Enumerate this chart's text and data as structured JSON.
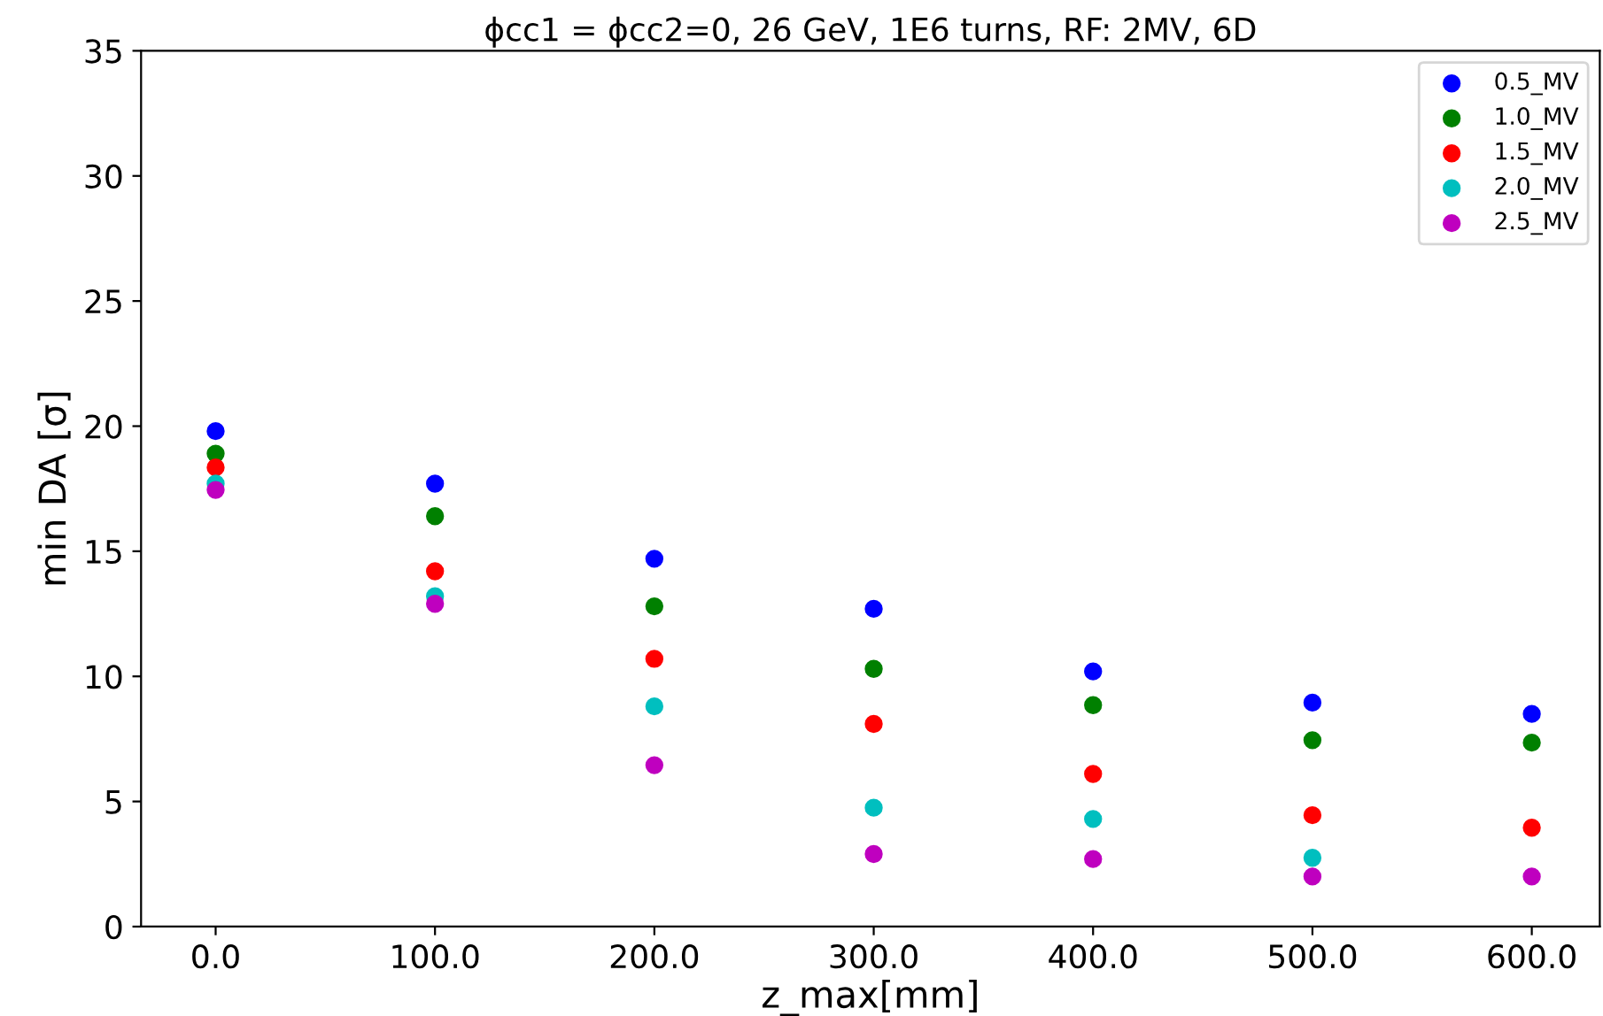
{
  "chart_data": {
    "type": "scatter",
    "title": "ϕcc1 = ϕcc2=0, 26 GeV, 1E6 turns, RF: 2MV, 6D",
    "xlabel": "z_max[mm]",
    "ylabel": "min DA [σ]",
    "x": [
      0,
      100,
      200,
      300,
      400,
      500,
      600
    ],
    "series": [
      {
        "name": "0.5_MV",
        "color": "#0000ff",
        "values": [
          19.8,
          17.7,
          14.7,
          12.7,
          10.2,
          8.95,
          8.5
        ]
      },
      {
        "name": "1.0_MV",
        "color": "#008000",
        "values": [
          18.9,
          16.4,
          12.8,
          10.3,
          8.85,
          7.45,
          7.35
        ]
      },
      {
        "name": "1.5_MV",
        "color": "#ff0000",
        "values": [
          18.35,
          14.2,
          10.7,
          8.1,
          6.1,
          4.45,
          3.95
        ]
      },
      {
        "name": "2.0_MV",
        "color": "#00bfbf",
        "values": [
          17.7,
          13.2,
          8.8,
          4.75,
          4.3,
          2.75,
          null
        ]
      },
      {
        "name": "2.5_MV",
        "color": "#bf00bf",
        "values": [
          17.45,
          12.9,
          6.45,
          2.9,
          2.7,
          2.0,
          2.0
        ]
      }
    ],
    "xlim": [
      -34,
      631
    ],
    "ylim": [
      0,
      35
    ],
    "xticks": [
      {
        "value": 0,
        "label": "0.0"
      },
      {
        "value": 100,
        "label": "100.0"
      },
      {
        "value": 200,
        "label": "200.0"
      },
      {
        "value": 300,
        "label": "300.0"
      },
      {
        "value": 400,
        "label": "400.0"
      },
      {
        "value": 500,
        "label": "500.0"
      },
      {
        "value": 600,
        "label": "600.0"
      }
    ],
    "yticks": [
      0,
      5,
      10,
      15,
      20,
      25,
      30,
      35
    ],
    "legend": "top right",
    "marker": "circle",
    "grid": false
  }
}
